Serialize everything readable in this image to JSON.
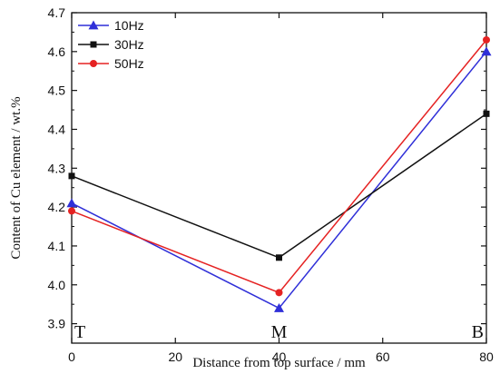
{
  "chart_data": {
    "type": "line",
    "title": "",
    "xlabel": "Distance from top surface / mm",
    "ylabel": "Content of Cu element / wt.%",
    "xlim": [
      0,
      80
    ],
    "ylim": [
      3.85,
      4.7
    ],
    "xticks": [
      0,
      20,
      40,
      60,
      80
    ],
    "yticks": [
      3.9,
      4.0,
      4.1,
      4.2,
      4.3,
      4.4,
      4.5,
      4.6,
      4.7
    ],
    "ytick_labels": [
      "3.9",
      "4.0",
      "4.1",
      "4.2",
      "4.3",
      "4.4",
      "4.5",
      "4.6",
      "4.7"
    ],
    "grid": false,
    "legend_position": "top-left",
    "x": [
      0,
      40,
      80
    ],
    "series": [
      {
        "name": "10Hz",
        "values": [
          4.21,
          3.94,
          4.6
        ],
        "color": "#2f2fd8",
        "marker": "triangle"
      },
      {
        "name": "30Hz",
        "values": [
          4.28,
          4.07,
          4.44
        ],
        "color": "#111111",
        "marker": "square"
      },
      {
        "name": "50Hz",
        "values": [
          4.19,
          3.98,
          4.63
        ],
        "color": "#e52222",
        "marker": "circle"
      }
    ],
    "annotations": [
      {
        "text": "T",
        "x": 0
      },
      {
        "text": "M",
        "x": 40
      },
      {
        "text": "B",
        "x": 80
      }
    ]
  }
}
